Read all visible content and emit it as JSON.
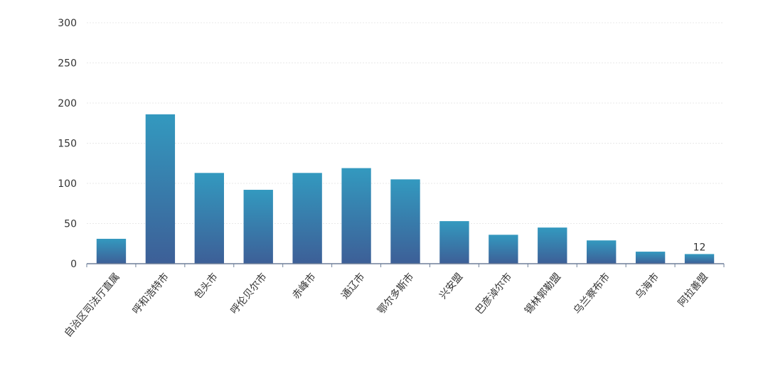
{
  "chart_data": {
    "type": "bar",
    "categories": [
      "自治区司法厅直属",
      "呼和浩特市",
      "包头市",
      "呼伦贝尔市",
      "赤峰市",
      "通辽市",
      "鄂尔多斯市",
      "兴安盟",
      "巴彦淖尔市",
      "锡林郭勒盟",
      "乌兰察布市",
      "乌海市",
      "阿拉善盟"
    ],
    "values": [
      31,
      186,
      113,
      92,
      113,
      119,
      105,
      53,
      36,
      45,
      29,
      15,
      12
    ],
    "ylim": [
      0,
      300
    ],
    "yticks": [
      "0",
      "50",
      "100",
      "150",
      "200",
      "250",
      "300"
    ],
    "data_labels": [
      {
        "category_index": 12,
        "text": "12"
      }
    ],
    "grid": true,
    "colors": {
      "bar_top": "#3399bf",
      "bar_bottom": "#3d5f97",
      "axis": "#6e7f99",
      "grid": "#e8e8e8"
    }
  }
}
